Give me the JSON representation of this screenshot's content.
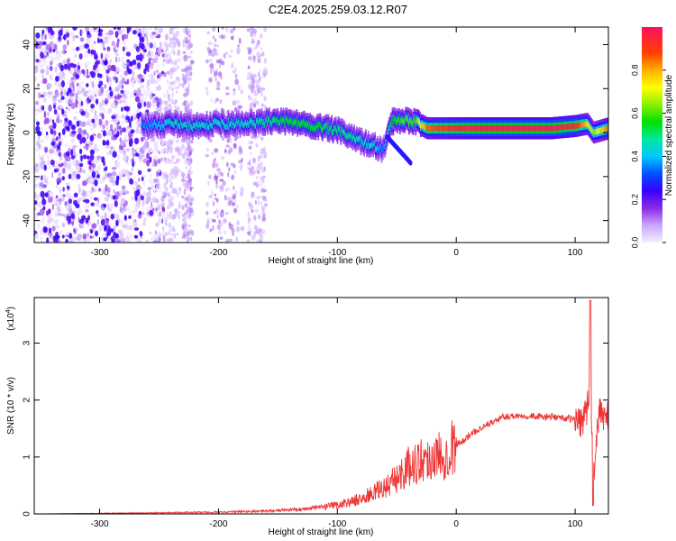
{
  "title": "C2E4.2025.259.03.12.R07",
  "chart_data": [
    {
      "type": "heatmap",
      "xlabel": "Height of straight line (km)",
      "ylabel": "Frequency (Hz)",
      "xlim": [
        -355,
        128
      ],
      "ylim": [
        -50,
        48
      ],
      "xticks": [
        -300,
        -200,
        -100,
        0,
        100
      ],
      "yticks": [
        -40,
        -20,
        0,
        20,
        40
      ],
      "xtick_labels": [
        "-300",
        "-200",
        "-100",
        "0",
        "100"
      ],
      "ytick_labels": [
        "-40",
        "-20",
        "0",
        "20",
        "40"
      ],
      "colorbar": {
        "label": "Normalized spectral amplitude",
        "range": [
          0,
          1
        ],
        "ticks": [
          0.0,
          0.2,
          0.4,
          0.6,
          0.8
        ],
        "tick_labels": [
          "0.0",
          "0.2",
          "0.4",
          "0.6",
          "0.8"
        ]
      },
      "ridge": {
        "x": [
          -265,
          -240,
          -220,
          -200,
          -180,
          -160,
          -140,
          -120,
          -100,
          -90,
          -80,
          -70,
          -62,
          -55,
          -45,
          -35,
          -25,
          -10,
          0,
          20,
          50,
          80,
          100,
          110,
          115,
          128
        ],
        "y": [
          3,
          4,
          3,
          4,
          4,
          5,
          5,
          3,
          1,
          -2,
          -4,
          -6,
          -8,
          5,
          6,
          5,
          2,
          2,
          2,
          2,
          2,
          2,
          3,
          4,
          0,
          2
        ],
        "amplitude": [
          0.3,
          0.4,
          0.4,
          0.4,
          0.4,
          0.45,
          0.5,
          0.5,
          0.45,
          0.45,
          0.4,
          0.4,
          0.3,
          0.5,
          0.55,
          0.55,
          0.8,
          0.85,
          0.9,
          0.92,
          0.92,
          0.92,
          0.88,
          0.7,
          0.6,
          0.8
        ]
      }
    },
    {
      "type": "line",
      "xlabel": "Height of straight line (km)",
      "ylabel": "SNR (10 * v/v)",
      "multiplier_label": "(x10",
      "multiplier_exp": "4",
      "multiplier_close": ")",
      "xlim": [
        -355,
        128
      ],
      "ylim": [
        0,
        3.8
      ],
      "xticks": [
        -300,
        -200,
        -100,
        0,
        100
      ],
      "yticks": [
        0,
        1,
        2,
        3
      ],
      "xtick_labels": [
        "-300",
        "-200",
        "-100",
        "0",
        "100"
      ],
      "ytick_labels": [
        "0",
        "1",
        "2",
        "3"
      ],
      "series": [
        {
          "color": "#ee3333",
          "x": [
            -355,
            -300,
            -250,
            -200,
            -160,
            -130,
            -110,
            -100,
            -90,
            -80,
            -70,
            -60,
            -50,
            -40,
            -30,
            -20,
            -10,
            0,
            10,
            20,
            30,
            40,
            50,
            60,
            70,
            80,
            90,
            100,
            105,
            110,
            113,
            115,
            120,
            128
          ],
          "y": [
            0.0,
            0.01,
            0.02,
            0.03,
            0.05,
            0.08,
            0.12,
            0.15,
            0.2,
            0.25,
            0.35,
            0.45,
            0.6,
            0.8,
            0.9,
            0.95,
            1.0,
            1.2,
            1.35,
            1.5,
            1.6,
            1.7,
            1.72,
            1.72,
            1.7,
            1.7,
            1.68,
            1.65,
            1.6,
            1.8,
            2.2,
            0.6,
            1.7,
            1.7
          ]
        }
      ]
    }
  ]
}
